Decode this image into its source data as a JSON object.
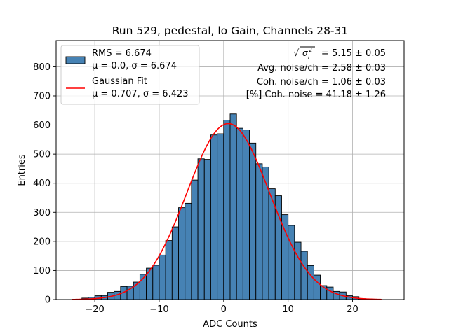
{
  "chart_data": {
    "type": "bar",
    "title": "Run 529, pedestal, lo Gain, Channels 28-31",
    "xlabel": "ADC Counts",
    "ylabel": "Entries",
    "xlim": [
      -26,
      28
    ],
    "ylim": [
      0,
      890
    ],
    "grid": true,
    "x_ticks": [
      -20,
      -10,
      0,
      10,
      20
    ],
    "x_tick_labels": [
      "−20",
      "−10",
      "0",
      "10",
      "20"
    ],
    "y_ticks": [
      0,
      100,
      200,
      300,
      400,
      500,
      600,
      700,
      800
    ],
    "y_tick_labels": [
      "0",
      "100",
      "200",
      "300",
      "400",
      "500",
      "600",
      "700",
      "800"
    ],
    "bin_width": 1,
    "bin_starts": [
      -23,
      -22,
      -21,
      -20,
      -19,
      -18,
      -17,
      -16,
      -15,
      -14,
      -13,
      -12,
      -11,
      -10,
      -9,
      -8,
      -7,
      -6,
      -5,
      -4,
      -3,
      -2,
      -1,
      0,
      1,
      2,
      3,
      4,
      5,
      6,
      7,
      8,
      9,
      10,
      11,
      12,
      13,
      14,
      15,
      16,
      17,
      18,
      19,
      20,
      21,
      22,
      23,
      24
    ],
    "values": [
      1,
      5,
      8,
      13,
      14,
      25,
      28,
      45,
      46,
      60,
      87,
      108,
      118,
      153,
      203,
      250,
      316,
      331,
      411,
      484,
      482,
      566,
      570,
      617,
      638,
      589,
      583,
      538,
      467,
      456,
      381,
      357,
      292,
      255,
      197,
      166,
      117,
      84,
      48,
      43,
      28,
      26,
      13,
      10,
      3,
      2,
      1,
      0
    ],
    "bar_color": "#4682b4",
    "series": [
      {
        "name": "RMS = 6.674",
        "label_line2": "μ = 0.0, σ = 6.674",
        "type": "histogram",
        "color": "#4682b4"
      },
      {
        "name": "Gaussian Fit",
        "label_line2": "μ = 0.707, σ = 6.423",
        "type": "line",
        "color": "#ff0000",
        "mu": 0.707,
        "sigma": 6.423,
        "amplitude": 605,
        "x_range": [
          -23.5,
          24.5
        ]
      }
    ],
    "legend_position": "upper-left",
    "annotations": [
      {
        "label": "√σᵢ² = 5.15 ± 0.05",
        "prefix": "= 5.15 ± 0.05"
      },
      {
        "label": "Avg. noise/ch = 2.58 ± 0.03"
      },
      {
        "label": "Coh. noise/ch = 1.06 ± 0.03"
      },
      {
        "label": "[%] Coh. noise = 41.18 ± 1.26"
      }
    ]
  }
}
